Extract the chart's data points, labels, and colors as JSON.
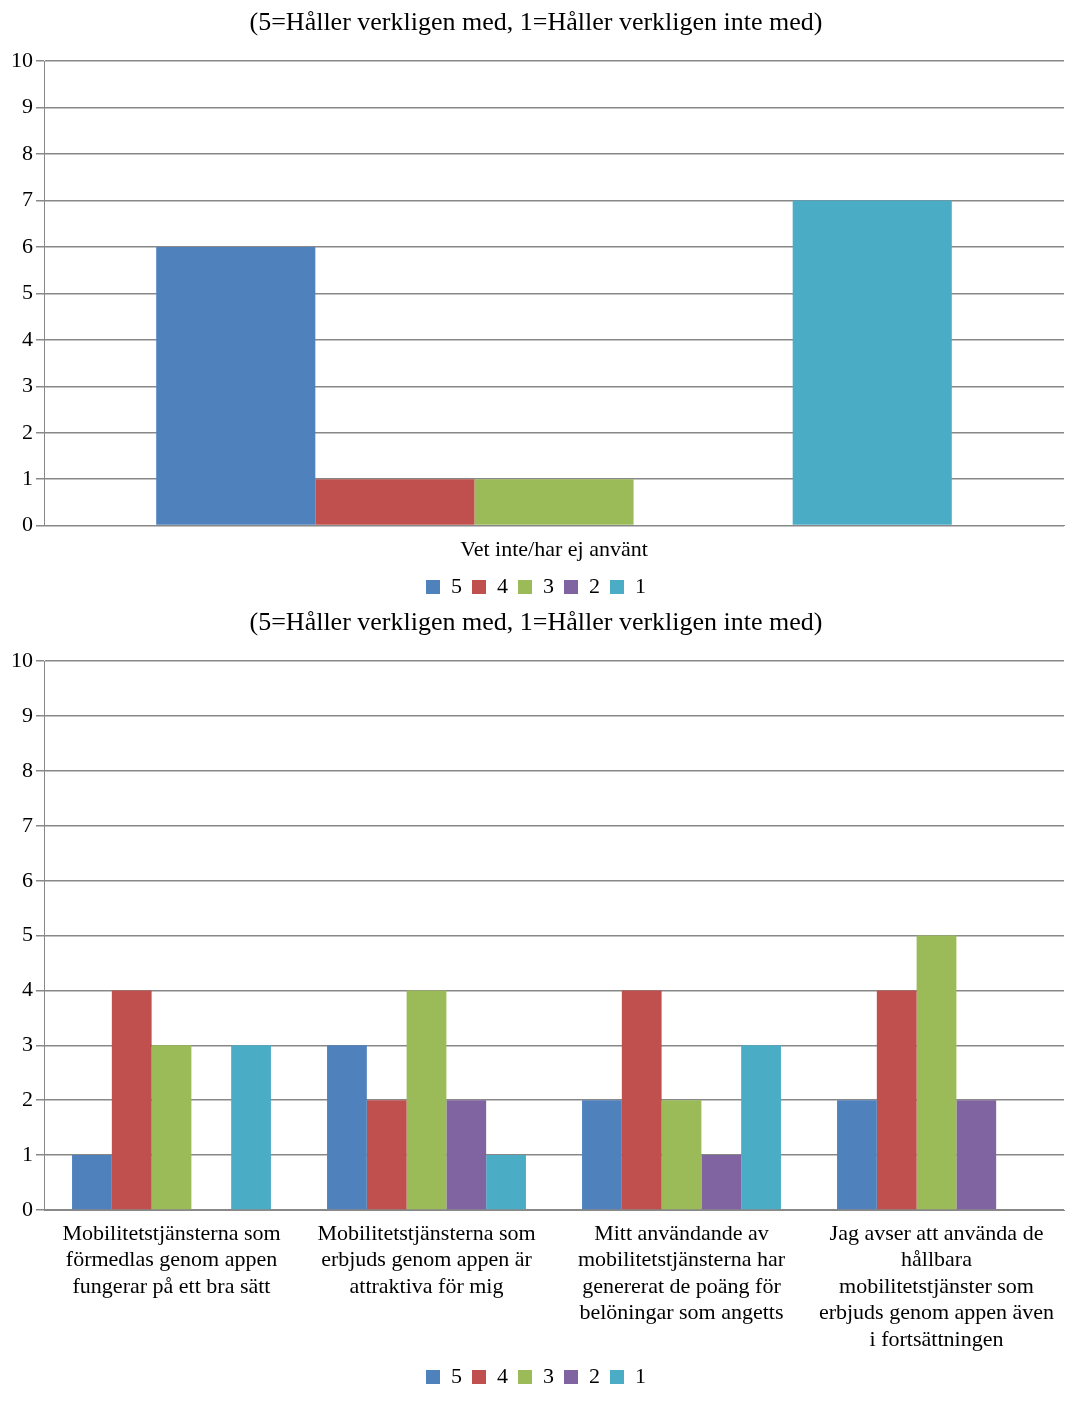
{
  "chart_data": [
    {
      "type": "bar",
      "title": "(5=Håller verkligen med, 1=Håller verkligen inte med)",
      "categories": [
        "Vet inte/har ej använt"
      ],
      "series": [
        {
          "name": "5",
          "color": "#4f81bd",
          "values": [
            6
          ]
        },
        {
          "name": "4",
          "color": "#c0504d",
          "values": [
            1
          ]
        },
        {
          "name": "3",
          "color": "#9bbb59",
          "values": [
            1
          ]
        },
        {
          "name": "2",
          "color": "#8064a2",
          "values": [
            0
          ]
        },
        {
          "name": "1",
          "color": "#4bacc6",
          "values": [
            7
          ]
        }
      ],
      "ylim": [
        0,
        10
      ],
      "yticks": [
        0,
        1,
        2,
        3,
        4,
        5,
        6,
        7,
        8,
        9,
        10
      ],
      "grid": "y",
      "legend": "bottom"
    },
    {
      "type": "bar",
      "title": "(5=Håller verkligen med, 1=Håller verkligen inte med)",
      "categories": [
        "Mobilitetstjänsterna som förmedlas genom appen fungerar på ett bra sätt",
        "Mobilitetstjänsterna som erbjuds genom appen är attraktiva för mig",
        "Mitt användande av mobilitetstjänsterna har genererat de poäng för belöningar som angetts",
        "Jag avser att använda de hållbara mobilitetstjänster som erbjuds genom appen även i fortsättningen"
      ],
      "series": [
        {
          "name": "5",
          "color": "#4f81bd",
          "values": [
            1,
            3,
            2,
            2
          ]
        },
        {
          "name": "4",
          "color": "#c0504d",
          "values": [
            4,
            2,
            4,
            4
          ]
        },
        {
          "name": "3",
          "color": "#9bbb59",
          "values": [
            3,
            4,
            2,
            5
          ]
        },
        {
          "name": "2",
          "color": "#8064a2",
          "values": [
            0,
            2,
            1,
            2
          ]
        },
        {
          "name": "1",
          "color": "#4bacc6",
          "values": [
            3,
            1,
            3,
            0
          ]
        }
      ],
      "ylim": [
        0,
        10
      ],
      "yticks": [
        0,
        1,
        2,
        3,
        4,
        5,
        6,
        7,
        8,
        9,
        10
      ],
      "grid": "y",
      "legend": "bottom"
    }
  ]
}
